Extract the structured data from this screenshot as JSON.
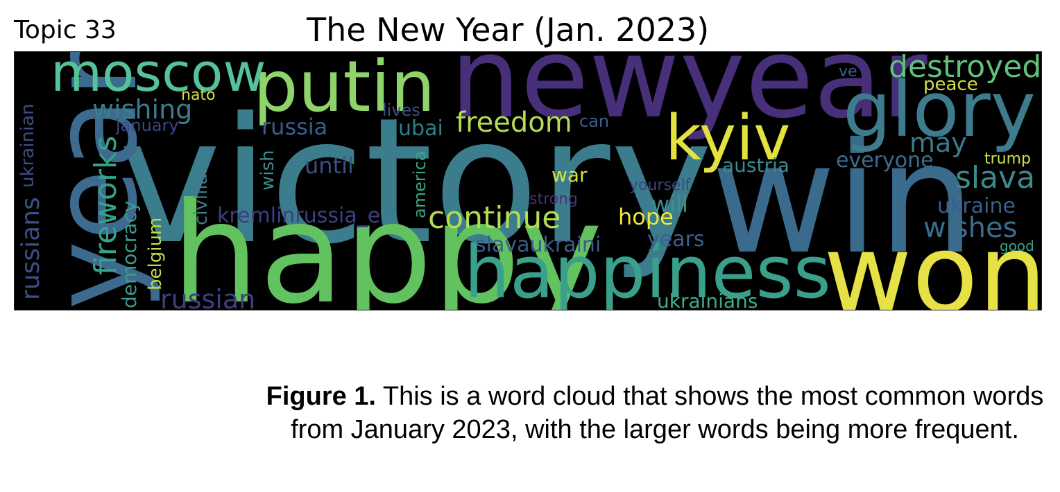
{
  "topic_label": "Topic 33",
  "title": "The New Year (Jan. 2023)",
  "words": [
    {
      "text": "victory",
      "color": "#3b7d8c"
    },
    {
      "text": "newyear",
      "color": "#482f7a"
    },
    {
      "text": "happy",
      "color": "#62c25f"
    },
    {
      "text": "win",
      "color": "#3a6a8c"
    },
    {
      "text": "year",
      "color": "#3d6b8f"
    },
    {
      "text": "won",
      "color": "#e6e147"
    },
    {
      "text": "happiness",
      "color": "#3aa08c"
    },
    {
      "text": "putin",
      "color": "#8fd46a"
    },
    {
      "text": "glory",
      "color": "#3d7b8d"
    },
    {
      "text": "moscow",
      "color": "#55c29a"
    },
    {
      "text": "kyiv",
      "color": "#e3e23f"
    },
    {
      "text": "destroyed",
      "color": "#62c07c"
    },
    {
      "text": "fireworks",
      "color": "#35a28a"
    },
    {
      "text": "continue",
      "color": "#b6dd4f"
    },
    {
      "text": "freedom",
      "color": "#b5dc52"
    },
    {
      "text": "wishing",
      "color": "#3a7c8c"
    },
    {
      "text": "slava",
      "color": "#3b8b8d"
    },
    {
      "text": "russian",
      "color": "#3d3f82"
    },
    {
      "text": "russians",
      "color": "#3c4f85"
    },
    {
      "text": "ukrainian",
      "color": "#3d4e86"
    },
    {
      "text": "wishes",
      "color": "#3b6c8d"
    },
    {
      "text": "may",
      "color": "#3d7a8c"
    },
    {
      "text": "everyone",
      "color": "#3f6b8e"
    },
    {
      "text": "ukraine",
      "color": "#3b5f8d"
    },
    {
      "text": "russia",
      "color": "#3c5d8c"
    },
    {
      "text": "until",
      "color": "#3b4f88"
    },
    {
      "text": "dubai",
      "color": "#2e7f8c"
    },
    {
      "text": "slavaukraini",
      "color": "#3c5c8c"
    },
    {
      "text": "kremlinrussia_e",
      "color": "#3b3f84"
    },
    {
      "text": "years",
      "color": "#3d5f8d"
    },
    {
      "text": "will",
      "color": "#3e8e8c"
    },
    {
      "text": "hope",
      "color": "#f0e63a"
    },
    {
      "text": "war",
      "color": "#d9e03f"
    },
    {
      "text": "austria",
      "color": "#3a8b8c"
    },
    {
      "text": "ukrainians",
      "color": "#3fae88"
    },
    {
      "text": "democracy",
      "color": "#3d9b8a"
    },
    {
      "text": "belgium",
      "color": "#c0dd47"
    },
    {
      "text": "civilians",
      "color": "#3e7f8c"
    },
    {
      "text": "america",
      "color": "#3aa67f"
    },
    {
      "text": "wish",
      "color": "#3b8c8d"
    },
    {
      "text": "lives",
      "color": "#3d4e86"
    },
    {
      "text": "january",
      "color": "#3c4885"
    },
    {
      "text": "can",
      "color": "#3f5e8c"
    },
    {
      "text": "peace",
      "color": "#d3df45"
    },
    {
      "text": "nato",
      "color": "#d7df44"
    },
    {
      "text": "ve",
      "color": "#3b5f8c"
    },
    {
      "text": "trump",
      "color": "#cde045"
    },
    {
      "text": "good",
      "color": "#3ca285"
    },
    {
      "text": "yourself",
      "color": "#3d4385"
    },
    {
      "text": "strong",
      "color": "#46317a"
    }
  ],
  "caption": {
    "label": "Figure 1.",
    "text": " This is a word cloud that shows the most common words from January 2023, with the larger words being more frequent."
  }
}
